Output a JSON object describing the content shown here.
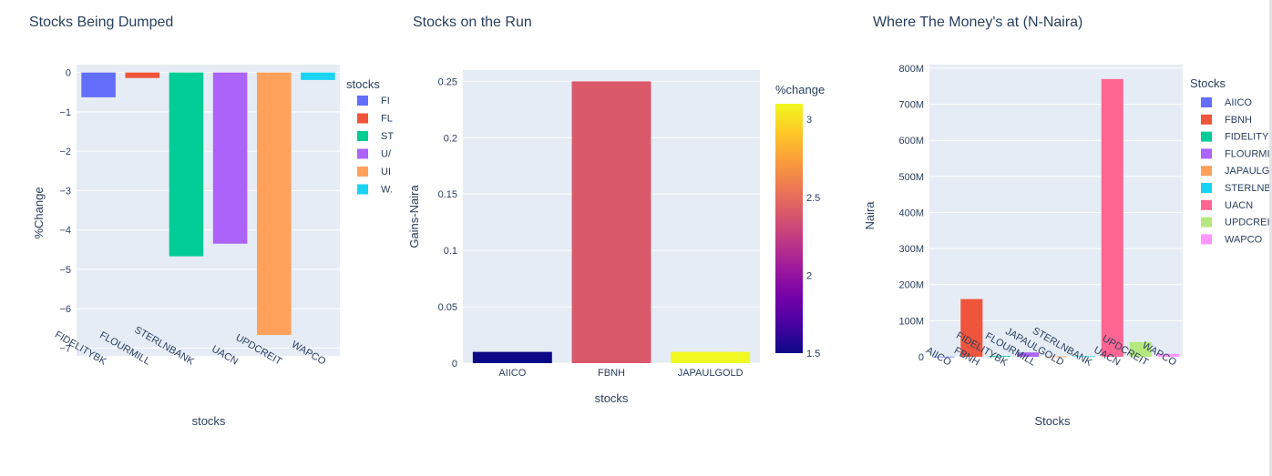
{
  "colors": {
    "plot_bg": "#e5ecf6",
    "grid": "#ffffff",
    "text": "#2a3f5f",
    "colorscale": [
      "#0d0887",
      "#46039f",
      "#7201a8",
      "#9c179e",
      "#bd3786",
      "#d8576b",
      "#ed7953",
      "#fb9f3a",
      "#fdca26",
      "#f0f921"
    ]
  },
  "chart_data": [
    {
      "type": "bar",
      "title": "Stocks Being Dumped",
      "xlabel": "stocks",
      "ylabel": "%Change",
      "ylim": [
        -7.2,
        0.2
      ],
      "yticks": [
        0,
        -1,
        -2,
        -3,
        -4,
        -5,
        -6,
        -7
      ],
      "ytick_labels": [
        "0",
        "−1",
        "−2",
        "−3",
        "−4",
        "−5",
        "−6",
        "−7"
      ],
      "categories": [
        "FIDELITYBK",
        "FLOURMILL",
        "STERLNBANK",
        "UACN",
        "UPDCREIT",
        "WAPCO"
      ],
      "values": [
        -0.63,
        -0.14,
        -4.67,
        -4.35,
        -6.67,
        -0.19
      ],
      "bar_colors": [
        "#636efa",
        "#ef553b",
        "#00cc96",
        "#ab63fa",
        "#ffa15a",
        "#19d3f3"
      ],
      "legend": {
        "title": "stocks",
        "placement": "right",
        "entries": [
          "FI",
          "FL",
          "ST",
          "U/",
          "UI",
          "W."
        ],
        "colors": [
          "#636efa",
          "#ef553b",
          "#00cc96",
          "#ab63fa",
          "#ffa15a",
          "#19d3f3"
        ]
      }
    },
    {
      "type": "bar",
      "title": "Stocks on the Run",
      "xlabel": "stocks",
      "ylabel": "Gains-Naira",
      "ylim": [
        0,
        0.26
      ],
      "yticks": [
        0,
        0.05,
        0.1,
        0.15,
        0.2,
        0.25
      ],
      "ytick_labels": [
        "0",
        "0.05",
        "0.1",
        "0.15",
        "0.2",
        "0.25"
      ],
      "categories": [
        "AIICO",
        "FBNH",
        "JAPAULGOLD"
      ],
      "values": [
        0.01,
        0.25,
        0.01
      ],
      "color_values": [
        1.5,
        2.4,
        3.1
      ],
      "colorbar": {
        "title": "%change",
        "range": [
          1.5,
          3.1
        ],
        "ticks": [
          1.5,
          2,
          2.5,
          3
        ],
        "tick_labels": [
          "1.5",
          "2",
          "2.5",
          "3"
        ]
      }
    },
    {
      "type": "bar",
      "title": "Where The Money's at (N-Naira)",
      "xlabel": "Stocks",
      "ylabel": "Naira",
      "ylim": [
        0,
        810000000
      ],
      "yticks": [
        0,
        100000000,
        200000000,
        300000000,
        400000000,
        500000000,
        600000000,
        700000000,
        800000000
      ],
      "ytick_labels": [
        "0",
        "100M",
        "200M",
        "300M",
        "400M",
        "500M",
        "600M",
        "700M",
        "800M"
      ],
      "categories": [
        "AIICO",
        "FBNH",
        "FIDELITYBK",
        "FLOURMILL",
        "JAPAULGOLD",
        "STERLNBANK",
        "UACN",
        "UPDCREIT",
        "WAPCO"
      ],
      "values": [
        500000,
        160000000,
        2000000,
        12000000,
        1000000,
        1500000,
        770000000,
        41000000,
        8000000
      ],
      "bar_colors": [
        "#636efa",
        "#ef553b",
        "#00cc96",
        "#ab63fa",
        "#ffa15a",
        "#19d3f3",
        "#ff6692",
        "#b6e880",
        "#ff97ff"
      ],
      "legend": {
        "title": "Stocks",
        "placement": "right",
        "entries": [
          "AIICO",
          "FBNH",
          "FIDELITYE",
          "FLOURMII",
          "JAPAULG(",
          "STERLNBA",
          "UACN",
          "UPDCREIT",
          "WAPCO"
        ],
        "colors": [
          "#636efa",
          "#ef553b",
          "#00cc96",
          "#ab63fa",
          "#ffa15a",
          "#19d3f3",
          "#ff6692",
          "#b6e880",
          "#ff97ff"
        ]
      }
    }
  ]
}
